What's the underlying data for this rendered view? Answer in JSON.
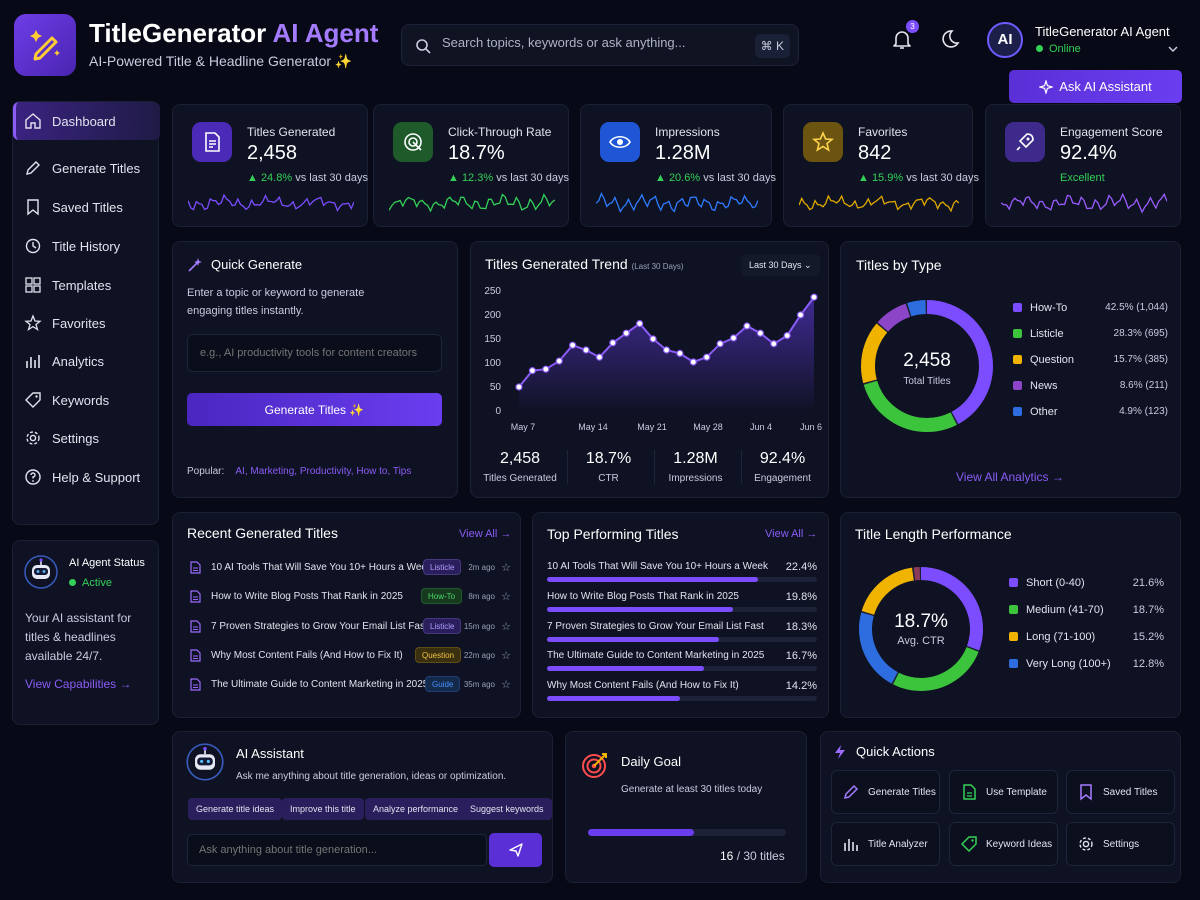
{
  "header": {
    "brand": "TitleGenerator",
    "brand_ai": "AI Agent",
    "tagline": "AI-Powered Title & Headline Generator ✨",
    "search_placeholder": "Search topics, keywords or ask anything...",
    "search_shortcut": "⌘ K",
    "notifications": "3",
    "user_initials": "AI",
    "user_name": "TitleGenerator AI Agent",
    "user_status": "Online",
    "ask_button": "Ask AI Assistant"
  },
  "sidebar": {
    "items": [
      {
        "label": "Dashboard",
        "icon": "home-icon"
      },
      {
        "label": "Generate Titles",
        "icon": "pencil-icon"
      },
      {
        "label": "Saved Titles",
        "icon": "bookmark-icon"
      },
      {
        "label": "Title History",
        "icon": "history-icon"
      },
      {
        "label": "Templates",
        "icon": "grid-icon"
      },
      {
        "label": "Favorites",
        "icon": "star-icon"
      },
      {
        "label": "Analytics",
        "icon": "bar-chart-icon"
      },
      {
        "label": "Keywords",
        "icon": "tag-icon"
      },
      {
        "label": "Settings",
        "icon": "gear-icon"
      },
      {
        "label": "Help & Support",
        "icon": "help-icon"
      }
    ]
  },
  "agent": {
    "title": "AI Agent Status",
    "status": "Active",
    "desc1": "Your AI assistant for",
    "desc2": "titles & headlines",
    "desc3": "available 24/7.",
    "link": "View Capabilities →"
  },
  "stats": [
    {
      "title": "Titles Generated",
      "value": "2,458",
      "delta": "▲ 24.8%",
      "suffix": "vs last 30 days",
      "color": "#7c4dff"
    },
    {
      "title": "Click-Through Rate",
      "value": "18.7%",
      "delta": "▲ 12.3%",
      "suffix": "vs last 30 days",
      "color": "#34d058"
    },
    {
      "title": "Impressions",
      "value": "1.28M",
      "delta": "▲ 20.6%",
      "suffix": "vs last 30 days",
      "color": "#2f7bff"
    },
    {
      "title": "Favorites",
      "value": "842",
      "delta": "▲ 15.9%",
      "suffix": "vs last 30 days",
      "color": "#e0a800"
    },
    {
      "title": "Engagement Score",
      "value": "92.4%",
      "delta": "Excellent",
      "suffix": "",
      "color": "#9b5cff"
    }
  ],
  "quick": {
    "title": "Quick Generate",
    "desc1": "Enter a topic or keyword to generate",
    "desc2": "engaging titles instantly.",
    "placeholder": "e.g., AI productivity tools for content creators",
    "button": "Generate Titles ✨",
    "popular_label": "Popular:",
    "popular": "AI, Marketing, Productivity, How to, Tips"
  },
  "trend": {
    "title": "Titles Generated Trend",
    "subtitle": "(Last 30 Days)",
    "range": "Last 30 Days",
    "summary": [
      {
        "v": "2,458",
        "l": "Titles Generated"
      },
      {
        "v": "18.7%",
        "l": "CTR"
      },
      {
        "v": "1.28M",
        "l": "Impressions"
      },
      {
        "v": "92.4%",
        "l": "Engagement"
      }
    ]
  },
  "chart_data": {
    "type": "area",
    "x_ticks": [
      "May 7",
      "May 14",
      "May 21",
      "May 28",
      "Jun 4",
      "Jun 6"
    ],
    "y_ticks": [
      "250",
      "200",
      "150",
      "100",
      "50",
      "0"
    ],
    "ylim": [
      0,
      250
    ],
    "values": [
      48,
      82,
      85,
      102,
      135,
      125,
      110,
      140,
      160,
      180,
      148,
      125,
      118,
      100,
      110,
      138,
      150,
      175,
      160,
      138,
      155,
      198,
      235
    ]
  },
  "types": {
    "title": "Titles by Type",
    "total": "2,458",
    "total_label": "Total Titles",
    "link": "View All Analytics →",
    "items": [
      {
        "name": "How-To",
        "value": "42.5% (1,044)",
        "pct": 42.5,
        "color": "#7c4dff"
      },
      {
        "name": "Listicle",
        "value": "28.3% (695)",
        "pct": 28.3,
        "color": "#3cc43c"
      },
      {
        "name": "Question",
        "value": "15.7% (385)",
        "pct": 15.7,
        "color": "#f0b400"
      },
      {
        "name": "News",
        "value": "8.6% (211)",
        "pct": 8.6,
        "color": "#8b45c6"
      },
      {
        "name": "Other",
        "value": "4.9% (123)",
        "pct": 4.9,
        "color": "#2d6de0"
      }
    ]
  },
  "recent": {
    "title": "Recent Generated Titles",
    "link": "View All →",
    "rows": [
      {
        "t": "10 AI Tools That Will Save You 10+ Hours a Week",
        "tag": "Listicle",
        "time": "2m ago",
        "bg": "#2a1f5c",
        "fg": "#b49cff"
      },
      {
        "t": "How to Write Blog Posts That Rank in 2025",
        "tag": "How-To",
        "time": "8m ago",
        "bg": "#173a1f",
        "fg": "#49d66a"
      },
      {
        "t": "7 Proven Strategies to Grow Your Email List Fast",
        "tag": "Listicle",
        "time": "15m ago",
        "bg": "#2a1f5c",
        "fg": "#b49cff"
      },
      {
        "t": "Why Most Content Fails (And How to Fix It)",
        "tag": "Question",
        "time": "22m ago",
        "bg": "#3a3010",
        "fg": "#f0c040"
      },
      {
        "t": "The Ultimate Guide to Content Marketing in 2025",
        "tag": "Guide",
        "time": "35m ago",
        "bg": "#142a4a",
        "fg": "#4a90ff"
      }
    ]
  },
  "top": {
    "title": "Top Performing Titles",
    "link": "View All →",
    "rows": [
      {
        "t": "10 AI Tools That Will Save You 10+ Hours a Week",
        "v": "22.4%",
        "pct": 22.4
      },
      {
        "t": "How to Write Blog Posts That Rank in 2025",
        "v": "19.8%",
        "pct": 19.8
      },
      {
        "t": "7 Proven Strategies to Grow Your Email List Fast",
        "v": "18.3%",
        "pct": 18.3
      },
      {
        "t": "The Ultimate Guide to Content Marketing in 2025",
        "v": "16.7%",
        "pct": 16.7
      },
      {
        "t": "Why Most Content Fails (And How to Fix It)",
        "v": "14.2%",
        "pct": 14.2
      }
    ]
  },
  "length": {
    "title": "Title Length Performance",
    "center": "18.7%",
    "center_label": "Avg. CTR",
    "items": [
      {
        "name": "Short (0-40)",
        "value": "21.6%",
        "color": "#7c4dff"
      },
      {
        "name": "Medium (41-70)",
        "value": "18.7%",
        "color": "#3cc43c"
      },
      {
        "name": "Long (71-100)",
        "value": "15.2%",
        "color": "#f0b400"
      },
      {
        "name": "Very Long (100+)",
        "value": "12.8%",
        "color": "#2d6de0"
      }
    ]
  },
  "assistant": {
    "title": "AI Assistant",
    "desc": "Ask me anything about title generation, ideas or optimization.",
    "chips": [
      "Generate title ideas",
      "Improve this title",
      "Analyze performance",
      "Suggest keywords"
    ],
    "placeholder": "Ask anything about title generation..."
  },
  "goal": {
    "title": "Daily Goal",
    "desc": "Generate at least 30 titles today",
    "done": "16",
    "total": "/ 30 titles",
    "progress": 0.533
  },
  "actions": {
    "title": "Quick Actions",
    "items": [
      {
        "label": "Generate Titles",
        "icon": "pencil-icon"
      },
      {
        "label": "Use Template",
        "icon": "document-icon"
      },
      {
        "label": "Saved Titles",
        "icon": "bookmark-icon"
      },
      {
        "label": "Title Analyzer",
        "icon": "bar-chart-icon"
      },
      {
        "label": "Keyword Ideas",
        "icon": "tag-icon"
      },
      {
        "label": "Settings",
        "icon": "gear-icon"
      }
    ]
  }
}
